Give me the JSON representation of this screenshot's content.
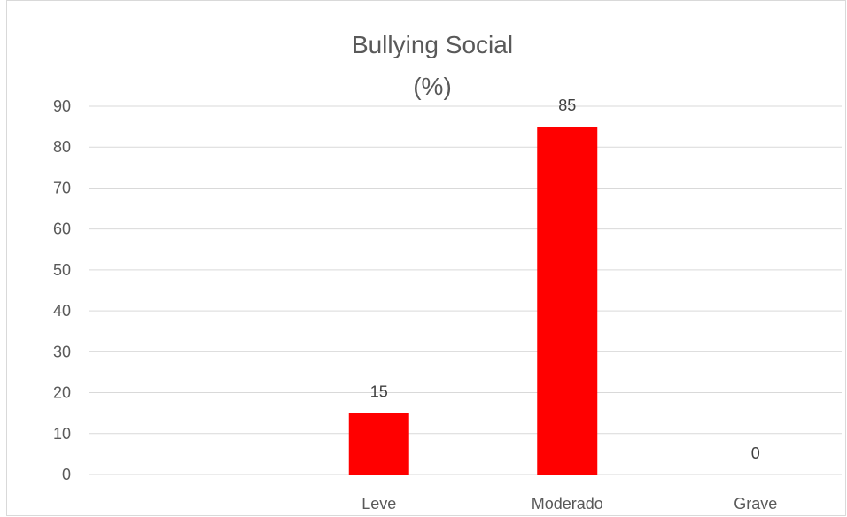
{
  "chart_data": {
    "type": "bar",
    "title": "Bullying Social",
    "subtitle": "(%)",
    "categories": [
      "",
      "Leve",
      "Moderado",
      "Grave"
    ],
    "values": [
      null,
      15,
      85,
      0
    ],
    "data_labels": [
      "",
      "15",
      "85",
      "0"
    ],
    "ylim": [
      0,
      90
    ],
    "yticks": [
      "0",
      "10",
      "20",
      "30",
      "40",
      "50",
      "60",
      "70",
      "80",
      "90"
    ],
    "grid": true,
    "legend": "none",
    "bar_color": "#ff0000",
    "grid_color": "#d9d9d9"
  }
}
